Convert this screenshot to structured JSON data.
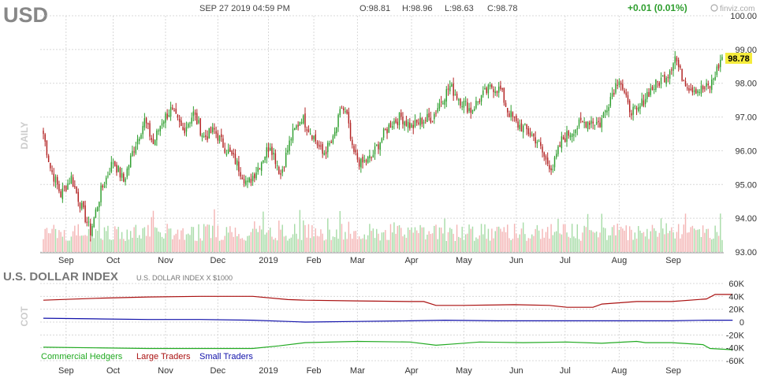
{
  "header": {
    "symbol": "USD",
    "datetime": "SEP 27 2019 04:59 PM",
    "open": "O:98.81",
    "high": "H:98.96",
    "low": "L:98.63",
    "close": "C:98.78",
    "change": "+0.01 (0.01%)",
    "brand": "finviz.com",
    "change_color": "#2e9e2e"
  },
  "price_panel": {
    "side_label": "DAILY",
    "last_price_label": "98.78",
    "last_price_bg": "#f5ec3c"
  },
  "cot_panel": {
    "title": "U.S. DOLLAR INDEX",
    "subtitle": "U.S. DOLLAR INDEX X $1000",
    "side_label": "COT"
  },
  "colors": {
    "up_candle": "#2e9e2e",
    "down_candle": "#b22222",
    "up_volume": "#a8dca8",
    "down_volume": "#f4b6b6",
    "grid": "#d8d8d8",
    "commercial": "#22aa22",
    "large": "#aa1111",
    "small": "#1111aa"
  },
  "chart_data": [
    {
      "type": "candlestick",
      "title": "USD",
      "x_labels": [
        "Sep",
        "Oct",
        "Nov",
        "Dec",
        "2019",
        "Feb",
        "Mar",
        "Apr",
        "May",
        "Jun",
        "Jul",
        "Aug",
        "Sep"
      ],
      "y_ticks": [
        "100.00",
        "99.00",
        "98.00",
        "97.00",
        "96.00",
        "95.00",
        "94.00",
        "93.00"
      ],
      "ylim": [
        93.0,
        100.0
      ],
      "anchors": [
        [
          0,
          96.5
        ],
        [
          4,
          95.5
        ],
        [
          10,
          94.7
        ],
        [
          16,
          95.2
        ],
        [
          22,
          94.3
        ],
        [
          27,
          93.6
        ],
        [
          33,
          94.8
        ],
        [
          40,
          95.7
        ],
        [
          46,
          95.1
        ],
        [
          52,
          96.1
        ],
        [
          58,
          96.9
        ],
        [
          63,
          96.2
        ],
        [
          68,
          96.9
        ],
        [
          73,
          97.2
        ],
        [
          80,
          96.6
        ],
        [
          86,
          97.1
        ],
        [
          92,
          96.4
        ],
        [
          98,
          96.6
        ],
        [
          104,
          96.1
        ],
        [
          110,
          95.7
        ],
        [
          117,
          95.0
        ],
        [
          124,
          95.6
        ],
        [
          130,
          96.2
        ],
        [
          136,
          95.3
        ],
        [
          142,
          96.4
        ],
        [
          148,
          97.0
        ],
        [
          154,
          96.5
        ],
        [
          160,
          95.9
        ],
        [
          166,
          96.3
        ],
        [
          171,
          97.3
        ],
        [
          174,
          97.0
        ],
        [
          177,
          96.0
        ],
        [
          182,
          95.6
        ],
        [
          188,
          95.8
        ],
        [
          193,
          96.3
        ],
        [
          199,
          96.8
        ],
        [
          205,
          97.0
        ],
        [
          211,
          96.7
        ],
        [
          217,
          96.9
        ],
        [
          223,
          97.0
        ],
        [
          228,
          97.5
        ],
        [
          233,
          97.9
        ],
        [
          239,
          97.5
        ],
        [
          245,
          97.2
        ],
        [
          251,
          97.6
        ],
        [
          257,
          97.9
        ],
        [
          262,
          97.8
        ],
        [
          266,
          97.2
        ],
        [
          271,
          96.8
        ],
        [
          277,
          96.6
        ],
        [
          283,
          96.3
        ],
        [
          288,
          95.7
        ],
        [
          292,
          95.5
        ],
        [
          297,
          96.3
        ],
        [
          303,
          96.6
        ],
        [
          308,
          96.8
        ],
        [
          314,
          96.9
        ],
        [
          319,
          96.8
        ],
        [
          325,
          97.6
        ],
        [
          330,
          98.2
        ],
        [
          335,
          97.3
        ],
        [
          340,
          97.1
        ],
        [
          346,
          97.7
        ],
        [
          352,
          98.0
        ],
        [
          358,
          98.3
        ],
        [
          362,
          98.8
        ],
        [
          365,
          98.3
        ],
        [
          370,
          97.9
        ],
        [
          376,
          97.8
        ],
        [
          382,
          97.9
        ],
        [
          386,
          98.4
        ],
        [
          389,
          98.78
        ]
      ],
      "volume_ylim": [
        0,
        100
      ]
    },
    {
      "type": "line",
      "title": "U.S. DOLLAR INDEX",
      "y_ticks": [
        "60K",
        "40K",
        "20K",
        "0",
        "-20K",
        "-40K",
        "-60K"
      ],
      "ylim": [
        -60000,
        60000
      ],
      "x_labels": [
        "Sep",
        "Oct",
        "Nov",
        "Dec",
        "2019",
        "Feb",
        "Mar",
        "Apr",
        "May",
        "Jun",
        "Jul",
        "Aug",
        "Sep"
      ],
      "series": [
        {
          "name": "Commercial Hedgers",
          "points": [
            [
              0,
              -39000
            ],
            [
              30,
              -40000
            ],
            [
              60,
              -41000
            ],
            [
              90,
              -41000
            ],
            [
              120,
              -41000
            ],
            [
              135,
              -37000
            ],
            [
              150,
              -32000
            ],
            [
              180,
              -30000
            ],
            [
              210,
              -31000
            ],
            [
              225,
              -36000
            ],
            [
              235,
              -34000
            ],
            [
              250,
              -31000
            ],
            [
              275,
              -32000
            ],
            [
              300,
              -31000
            ],
            [
              320,
              -33000
            ],
            [
              340,
              -30000
            ],
            [
              345,
              -32000
            ],
            [
              360,
              -32000
            ],
            [
              378,
              -35000
            ],
            [
              382,
              -41000
            ],
            [
              395,
              -43000
            ]
          ]
        },
        {
          "name": "Large Traders",
          "points": [
            [
              0,
              34000
            ],
            [
              30,
              37000
            ],
            [
              60,
              39000
            ],
            [
              90,
              40000
            ],
            [
              120,
              40000
            ],
            [
              140,
              35000
            ],
            [
              150,
              34000
            ],
            [
              180,
              33000
            ],
            [
              210,
              32000
            ],
            [
              218,
              32000
            ],
            [
              225,
              26000
            ],
            [
              240,
              26000
            ],
            [
              270,
              27000
            ],
            [
              290,
              26000
            ],
            [
              300,
              23000
            ],
            [
              315,
              23000
            ],
            [
              320,
              28000
            ],
            [
              340,
              32000
            ],
            [
              360,
              32000
            ],
            [
              380,
              36000
            ],
            [
              385,
              43000
            ],
            [
              395,
              43000
            ]
          ]
        },
        {
          "name": "Small Traders",
          "points": [
            [
              0,
              6000
            ],
            [
              30,
              5000
            ],
            [
              60,
              4000
            ],
            [
              90,
              4000
            ],
            [
              120,
              3000
            ],
            [
              140,
              1000
            ],
            [
              150,
              0
            ],
            [
              180,
              1000
            ],
            [
              210,
              2000
            ],
            [
              230,
              3000
            ],
            [
              260,
              2000
            ],
            [
              290,
              2000
            ],
            [
              320,
              2000
            ],
            [
              360,
              2000
            ],
            [
              380,
              3000
            ],
            [
              395,
              3000
            ]
          ]
        }
      ]
    }
  ]
}
